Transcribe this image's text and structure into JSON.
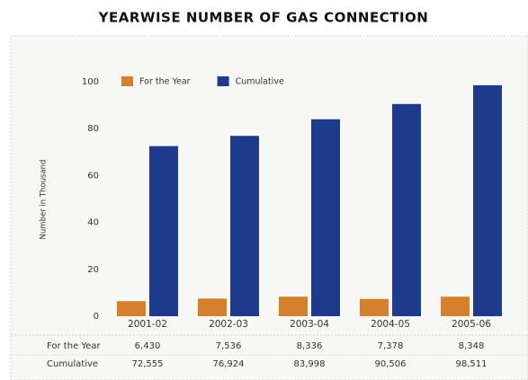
{
  "chart_data": {
    "type": "bar",
    "title": "YEARWISE NUMBER OF GAS CONNECTION",
    "y_label": "Number in Thousand",
    "categories": [
      "2001-02",
      "2002-03",
      "2003-04",
      "2004-05",
      "2005-06"
    ],
    "series": [
      {
        "name": "For the Year",
        "color": "#d4802c",
        "values": [
          6.43,
          7.536,
          8.336,
          7.378,
          8.348
        ],
        "value_labels": [
          "6,430",
          "7,536",
          "8,336",
          "7,378",
          "8,348"
        ]
      },
      {
        "name": "Cumulative",
        "color": "#1e3a8c",
        "values": [
          72.555,
          76.924,
          83.998,
          90.506,
          98.511
        ],
        "value_labels": [
          "72,555",
          "76,924",
          "83,998",
          "90,506",
          "98,511"
        ]
      }
    ],
    "ylim": [
      0,
      100
    ],
    "yticks": [
      0,
      20,
      40,
      60,
      80,
      100
    ],
    "grid": false,
    "legend": "top-left"
  }
}
